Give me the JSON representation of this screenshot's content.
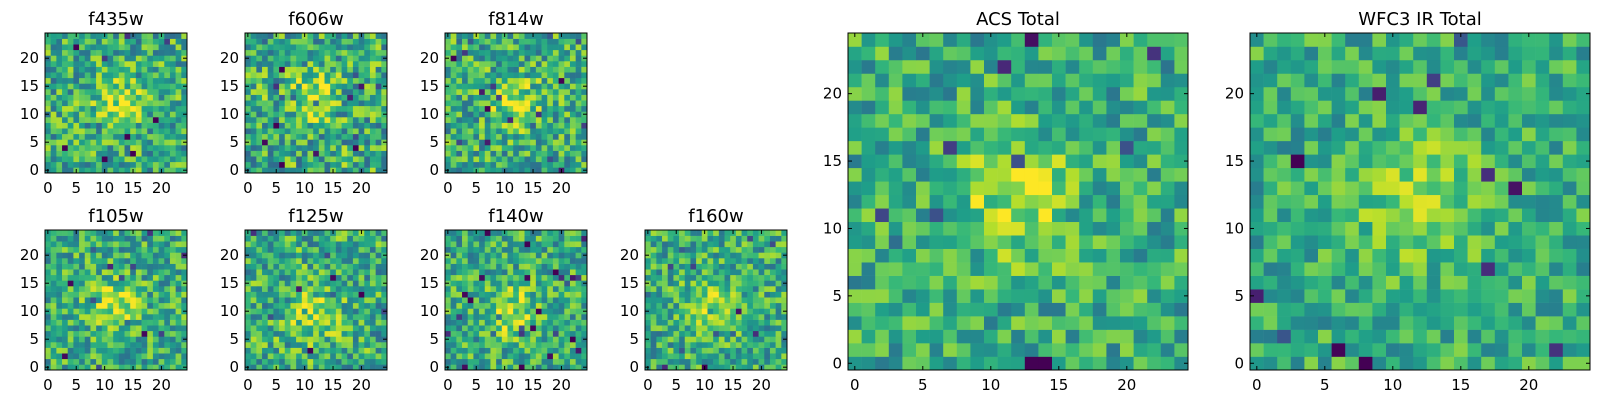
{
  "chart_data": {
    "type": "heatmap",
    "colormap": "viridis",
    "panels": [
      {
        "title": "f435w",
        "shape": [
          25,
          25
        ],
        "xlim": [
          -0.5,
          24.5
        ],
        "ylim": [
          -0.5,
          24.5
        ],
        "xticks": [
          0,
          5,
          10,
          15,
          20
        ],
        "yticks": [
          0,
          5,
          10,
          15,
          20
        ],
        "peak": [
          13,
          12
        ],
        "seed": 11,
        "noise": 0.55
      },
      {
        "title": "f606w",
        "shape": [
          25,
          25
        ],
        "xlim": [
          -0.5,
          24.5
        ],
        "ylim": [
          -0.5,
          24.5
        ],
        "xticks": [
          0,
          5,
          10,
          15,
          20
        ],
        "yticks": [
          0,
          5,
          10,
          15,
          20
        ],
        "peak": [
          11,
          13
        ],
        "seed": 23,
        "noise": 0.6
      },
      {
        "title": "f814w",
        "shape": [
          25,
          25
        ],
        "xlim": [
          -0.5,
          24.5
        ],
        "ylim": [
          -0.5,
          24.5
        ],
        "xticks": [
          0,
          5,
          10,
          15,
          20
        ],
        "yticks": [
          0,
          5,
          10,
          15,
          20
        ],
        "peak": [
          12,
          12
        ],
        "seed": 37,
        "noise": 0.55
      },
      {
        "title": "f105w",
        "shape": [
          25,
          25
        ],
        "xlim": [
          -0.5,
          24.5
        ],
        "ylim": [
          -0.5,
          24.5
        ],
        "xticks": [
          0,
          5,
          10,
          15,
          20
        ],
        "yticks": [
          0,
          5,
          10,
          15,
          20
        ],
        "peak": [
          12,
          11
        ],
        "seed": 41,
        "noise": 0.5
      },
      {
        "title": "f125w",
        "shape": [
          25,
          25
        ],
        "xlim": [
          -0.5,
          24.5
        ],
        "ylim": [
          -0.5,
          24.5
        ],
        "xticks": [
          0,
          5,
          10,
          15,
          20
        ],
        "yticks": [
          0,
          5,
          10,
          15,
          20
        ],
        "peak": [
          12,
          9
        ],
        "seed": 53,
        "noise": 0.55
      },
      {
        "title": "f140w",
        "shape": [
          25,
          25
        ],
        "xlim": [
          -0.5,
          24.5
        ],
        "ylim": [
          -0.5,
          24.5
        ],
        "xticks": [
          0,
          5,
          10,
          15,
          20
        ],
        "yticks": [
          0,
          5,
          10,
          15,
          20
        ],
        "peak": [
          11,
          10
        ],
        "seed": 67,
        "noise": 0.5
      },
      {
        "title": "f160w",
        "shape": [
          25,
          25
        ],
        "xlim": [
          -0.5,
          24.5
        ],
        "ylim": [
          -0.5,
          24.5
        ],
        "xticks": [
          0,
          5,
          10,
          15,
          20
        ],
        "yticks": [
          0,
          5,
          10,
          15,
          20
        ],
        "peak": [
          11,
          11
        ],
        "seed": 79,
        "noise": 0.5
      },
      {
        "title": "ACS Total",
        "shape": [
          25,
          25
        ],
        "xlim": [
          -0.5,
          24.5
        ],
        "ylim": [
          -0.5,
          24.5
        ],
        "xticks": [
          0,
          5,
          10,
          15,
          20
        ],
        "yticks": [
          0,
          5,
          10,
          15,
          20
        ],
        "peak": [
          12,
          12
        ],
        "seed": 97,
        "noise": 0.45
      },
      {
        "title": "WFC3 IR Total",
        "shape": [
          25,
          25
        ],
        "xlim": [
          -0.5,
          24.5
        ],
        "ylim": [
          -0.5,
          24.5
        ],
        "xticks": [
          0,
          5,
          10,
          15,
          20
        ],
        "yticks": [
          0,
          5,
          10,
          15,
          20
        ],
        "peak": [
          12,
          12
        ],
        "seed": 113,
        "noise": 0.4
      }
    ]
  }
}
